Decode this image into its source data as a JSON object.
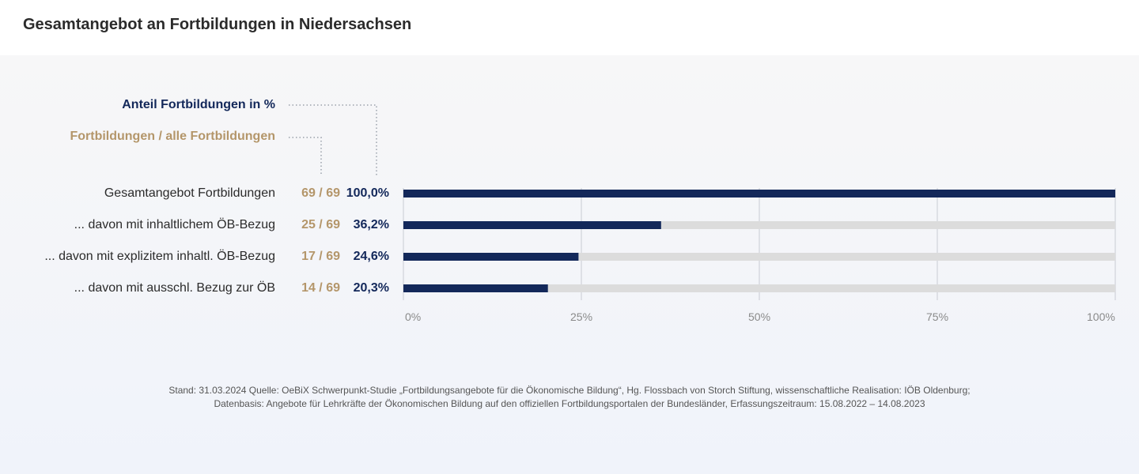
{
  "header": {
    "title": "Gesamtangebot an Fortbildungen in Niedersachsen"
  },
  "legend": {
    "percent_label": "Anteil Fortbildungen  in %",
    "ratio_label": "Fortbildungen / alle Fortbildungen"
  },
  "colors": {
    "bar": "#13285a",
    "track": "#dcdcdc",
    "ratio_text": "#b4966a",
    "grid": "#c8ccd4"
  },
  "chart_data": {
    "type": "bar",
    "orientation": "horizontal",
    "title": "Gesamtangebot an Fortbildungen in Niedersachsen",
    "categories": [
      "Gesamtangebot Fortbildungen",
      "... davon mit inhaltlichem ÖB-Bezug",
      "... davon mit explizitem inhaltl. ÖB-Bezug",
      "... davon mit ausschl. Bezug zur ÖB"
    ],
    "values": [
      100.0,
      36.2,
      24.6,
      20.3
    ],
    "ratio_labels": [
      "69 / 69",
      "25 / 69",
      "17 / 69",
      "14 / 69"
    ],
    "value_labels": [
      "100,0%",
      "36,2%",
      "24,6%",
      "20,3%"
    ],
    "xlim": [
      0,
      100
    ],
    "xticks": [
      0,
      25,
      50,
      75,
      100
    ],
    "xtick_labels": [
      "0%",
      "25%",
      "50%",
      "75%",
      "100%"
    ],
    "xlabel": "",
    "ylabel": "",
    "grid": true
  },
  "footnote": {
    "line1": "Stand: 31.03.2024 Quelle: OeBiX Schwerpunkt-Studie „Fortbildungsangebote für die Ökonomische Bildung“, Hg. Flossbach von Storch Stiftung, wissenschaftliche Realisation: IÖB Oldenburg;",
    "line2": "Datenbasis: Angebote für Lehrkräfte der Ökonomischen Bildung auf den offiziellen Fortbildungsportalen der Bundesländer, Erfassungszeitraum: 15.08.2022 – 14.08.2023"
  }
}
